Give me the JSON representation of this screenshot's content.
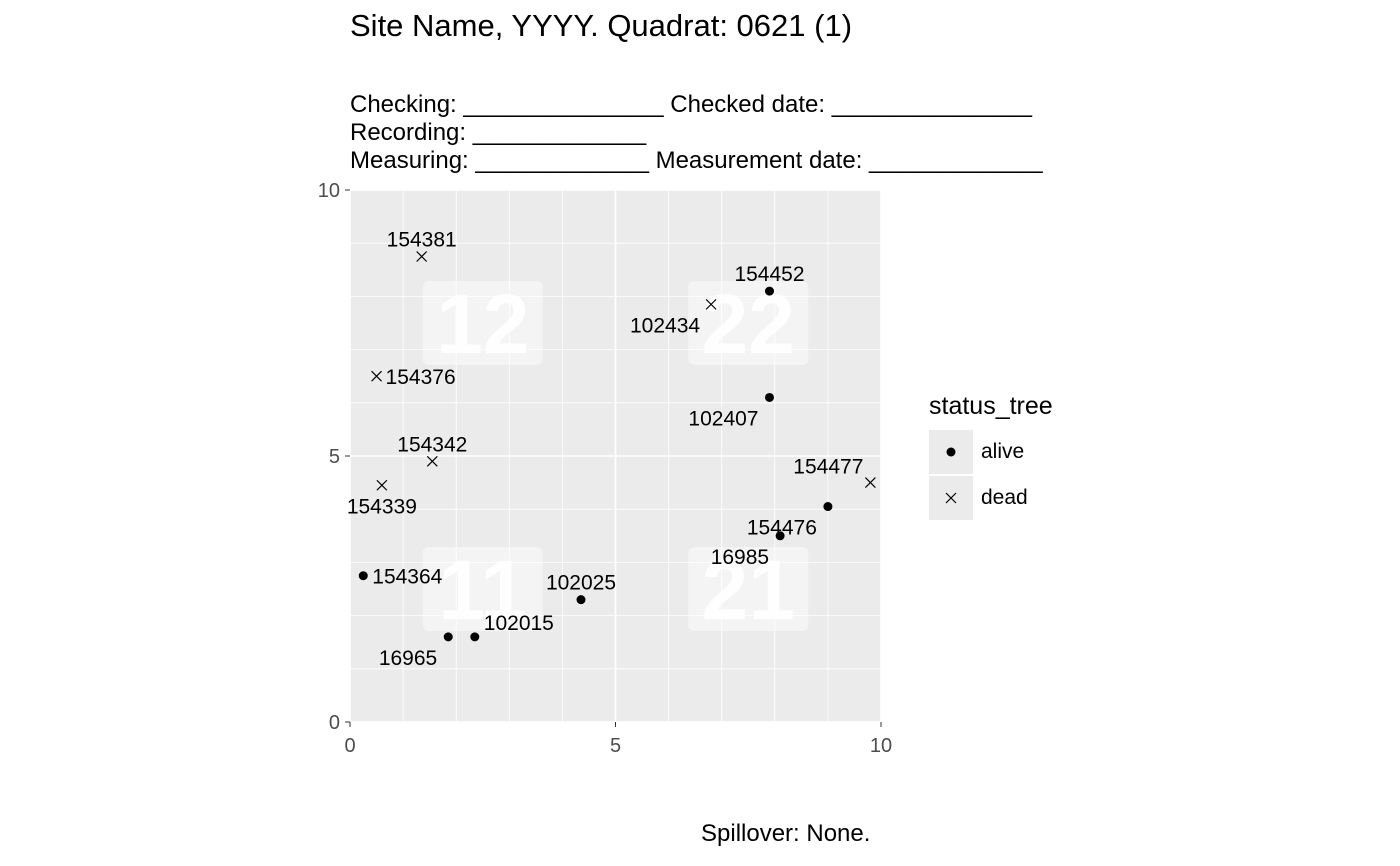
{
  "header": {
    "title": "Site Name, YYYY. Quadrat: 0621 (1)",
    "form_lines": [
      "Checking: _______________ Checked date: _______________",
      "Recording: _____________",
      "Measuring: _____________ Measurement date: _____________"
    ]
  },
  "footer": {
    "caption": "Spillover: None."
  },
  "chart_data": {
    "type": "scatter",
    "xlim": [
      0,
      10
    ],
    "ylim": [
      0,
      10
    ],
    "x_ticks": [
      "0",
      "5",
      "10"
    ],
    "y_ticks": [
      "0",
      "5",
      "10"
    ],
    "grid": true,
    "panel_color": "#ebebeb",
    "legend_title": "status_tree",
    "legend_position": "right",
    "legend": [
      {
        "label": "alive",
        "shape": "filled-circle"
      },
      {
        "label": "dead",
        "shape": "cross"
      }
    ],
    "subquadrats": [
      {
        "label": "12",
        "x": 2.5,
        "y": 7.5
      },
      {
        "label": "22",
        "x": 7.5,
        "y": 7.5
      },
      {
        "label": "11",
        "x": 2.5,
        "y": 2.5
      },
      {
        "label": "21",
        "x": 7.5,
        "y": 2.5
      }
    ],
    "points": [
      {
        "tag": "154381",
        "x": 1.35,
        "y": 8.75,
        "status": "dead",
        "label_pos": "above"
      },
      {
        "tag": "154452",
        "x": 7.9,
        "y": 8.1,
        "status": "alive",
        "label_pos": "above"
      },
      {
        "tag": "102434",
        "x": 6.8,
        "y": 7.85,
        "status": "dead",
        "label_pos": "below-left"
      },
      {
        "tag": "154376",
        "x": 0.5,
        "y": 6.5,
        "status": "dead",
        "label_pos": "right"
      },
      {
        "tag": "102407",
        "x": 7.9,
        "y": 6.1,
        "status": "alive",
        "label_pos": "below-left"
      },
      {
        "tag": "154342",
        "x": 1.55,
        "y": 4.9,
        "status": "dead",
        "label_pos": "above"
      },
      {
        "tag": "154477",
        "x": 9.8,
        "y": 4.5,
        "status": "dead",
        "label_pos": "above-left"
      },
      {
        "tag": "154339",
        "x": 0.6,
        "y": 4.45,
        "status": "dead",
        "label_pos": "below"
      },
      {
        "tag": "154476",
        "x": 9.0,
        "y": 4.05,
        "status": "alive",
        "label_pos": "below-left"
      },
      {
        "tag": "16985",
        "x": 8.1,
        "y": 3.5,
        "status": "alive",
        "label_pos": "below-left"
      },
      {
        "tag": "154364",
        "x": 0.25,
        "y": 2.75,
        "status": "alive",
        "label_pos": "right"
      },
      {
        "tag": "102025",
        "x": 4.35,
        "y": 2.3,
        "status": "alive",
        "label_pos": "above"
      },
      {
        "tag": "102015",
        "x": 2.35,
        "y": 1.6,
        "status": "alive",
        "label_pos": "above-right"
      },
      {
        "tag": "16965",
        "x": 1.85,
        "y": 1.6,
        "status": "alive",
        "label_pos": "below-left"
      }
    ]
  }
}
